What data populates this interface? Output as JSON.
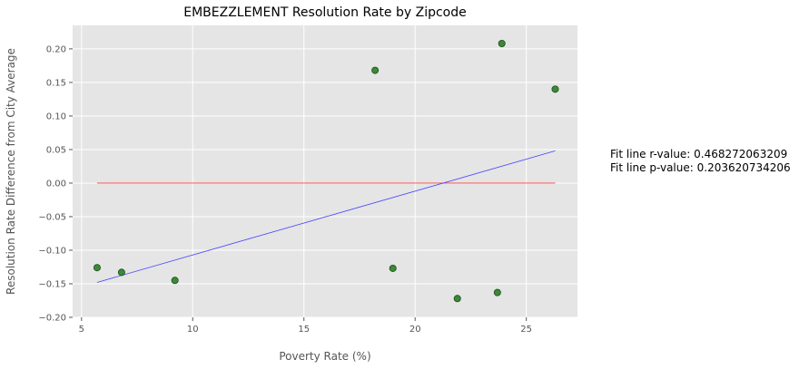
{
  "chart_data": {
    "type": "scatter",
    "title": "EMBEZZLEMENT Resolution Rate by Zipcode",
    "xlabel": "Poverty Rate (%)",
    "ylabel": "Resolution Rate Difference from City Average",
    "xlim": [
      4.6,
      27.3
    ],
    "ylim": [
      -0.2,
      0.235
    ],
    "x_ticks": [
      5,
      10,
      15,
      20,
      25
    ],
    "y_ticks": [
      -0.2,
      -0.15,
      -0.1,
      -0.05,
      0.0,
      0.05,
      0.1,
      0.15,
      0.2
    ],
    "x_tick_labels": [
      "5",
      "10",
      "15",
      "20",
      "25"
    ],
    "y_tick_labels": [
      "−0.20",
      "−0.15",
      "−0.10",
      "−0.05",
      "0.00",
      "0.05",
      "0.10",
      "0.15",
      "0.20"
    ],
    "grid": true,
    "points": [
      {
        "x": 5.7,
        "y": -0.126
      },
      {
        "x": 6.8,
        "y": -0.133
      },
      {
        "x": 9.2,
        "y": -0.145
      },
      {
        "x": 18.2,
        "y": 0.168
      },
      {
        "x": 19.0,
        "y": -0.127
      },
      {
        "x": 21.9,
        "y": -0.172
      },
      {
        "x": 23.7,
        "y": -0.163
      },
      {
        "x": 23.9,
        "y": 0.208
      },
      {
        "x": 26.3,
        "y": 0.14
      }
    ],
    "fit_line": {
      "x": [
        5.7,
        26.3
      ],
      "y": [
        -0.148,
        0.048
      ]
    },
    "zero_line": {
      "x": [
        5.7,
        26.3
      ],
      "y": [
        0.0,
        0.0
      ]
    },
    "colors": {
      "background": "#e5e5e5",
      "grid": "#ffffff",
      "point_fill": "#3a8a36",
      "point_edge": "#1f4a1c",
      "fit_line": "#4444ff",
      "zero_line": "#ff4444"
    },
    "annotations": [
      "Fit line r-value: 0.468272063209",
      "Fit line p-value: 0.203620734206"
    ]
  }
}
